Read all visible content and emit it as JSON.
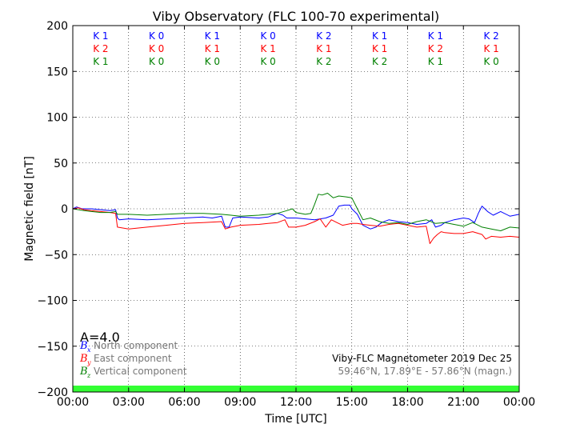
{
  "chart_data": {
    "type": "line",
    "title": "Viby Observatory (FLC 100-70 experimental)",
    "xlabel": "Time [UTC]",
    "ylabel": "Magnetic field [nT]",
    "xlim": [
      0,
      24
    ],
    "ylim": [
      -200,
      200
    ],
    "x_ticks": [
      0,
      3,
      6,
      9,
      12,
      15,
      18,
      21,
      24
    ],
    "x_tick_labels": [
      "00:00",
      "03:00",
      "06:00",
      "09:00",
      "12:00",
      "15:00",
      "18:00",
      "21:00",
      "00:00"
    ],
    "y_ticks": [
      -200,
      -150,
      -100,
      -50,
      0,
      50,
      100,
      150,
      200
    ],
    "y_tick_labels": [
      "−200",
      "−150",
      "−100",
      "−50",
      "0",
      "50",
      "100",
      "150",
      "200"
    ],
    "grid": true,
    "colors": {
      "north": "#0000ff",
      "east": "#ff0000",
      "vertical": "#008000",
      "band": "#33ff33"
    },
    "k_index": {
      "north": [
        "K 1",
        "K 0",
        "K 1",
        "K 0",
        "K 2",
        "K 1",
        "K 1",
        "K 2"
      ],
      "east": [
        "K 2",
        "K 0",
        "K 1",
        "K 1",
        "K 1",
        "K 1",
        "K 2",
        "K 1"
      ],
      "vertical": [
        "K 1",
        "K 0",
        "K 0",
        "K 0",
        "K 2",
        "K 2",
        "K 1",
        "K 0"
      ]
    },
    "a_index": "A=4.0",
    "legend": [
      {
        "symbol": "B",
        "sub": "x",
        "label": "North component",
        "color": "#0000ff"
      },
      {
        "symbol": "B",
        "sub": "y",
        "label": "East component",
        "color": "#ff0000"
      },
      {
        "symbol": "B",
        "sub": "z",
        "label": "Vertical component",
        "color": "#008000"
      }
    ],
    "info_line1": "Viby-FLC Magnetometer 2019 Dec 25",
    "info_line2": "59.46°N, 17.89°E - 57.86°N (magn.)",
    "series": [
      {
        "key": "north",
        "color": "#0000ff",
        "x": [
          0,
          0.2,
          0.5,
          1,
          1.5,
          2,
          2.3,
          2.4,
          2.5,
          3,
          4,
          5,
          6,
          7,
          7.5,
          8,
          8.2,
          8.4,
          8.6,
          9,
          10,
          10.5,
          11,
          11.3,
          11.5,
          12,
          12.5,
          13,
          13.3,
          13.6,
          14,
          14.3,
          14.6,
          14.9,
          15,
          15.3,
          15.6,
          16,
          16.3,
          16.6,
          17,
          17.5,
          18,
          18.5,
          19,
          19.3,
          19.5,
          19.8,
          20,
          20.5,
          21,
          21.3,
          21.6,
          21.8,
          22,
          22.3,
          22.6,
          23,
          23.5,
          24
        ],
        "y": [
          0,
          2,
          0,
          0,
          -1,
          -2,
          -1,
          -10,
          -12,
          -11,
          -12,
          -11,
          -10,
          -9,
          -10,
          -8,
          -20,
          -20,
          -10,
          -9,
          -10,
          -9,
          -5,
          -7,
          -10,
          -10,
          -11,
          -12,
          -11,
          -10,
          -7,
          3,
          4,
          4,
          0,
          -6,
          -18,
          -22,
          -20,
          -15,
          -12,
          -14,
          -15,
          -17,
          -16,
          -12,
          -20,
          -18,
          -15,
          -12,
          -10,
          -11,
          -15,
          -5,
          3,
          -3,
          -7,
          -3,
          -8,
          -6
        ]
      },
      {
        "key": "east",
        "color": "#ff0000",
        "x": [
          0,
          0.3,
          0.6,
          1,
          1.5,
          2,
          2.3,
          2.4,
          3,
          4,
          5,
          6,
          7,
          8,
          8.2,
          8.5,
          9,
          10,
          10.5,
          11,
          11.4,
          11.6,
          12,
          12.5,
          13,
          13.3,
          13.6,
          13.9,
          14.2,
          14.5,
          15,
          15.3,
          15.6,
          16,
          16.5,
          17,
          17.5,
          18,
          18.5,
          19,
          19.2,
          19.4,
          19.6,
          19.8,
          20,
          20.5,
          21,
          21.5,
          22,
          22.2,
          22.5,
          23,
          23.5,
          24
        ],
        "y": [
          0,
          1,
          -1,
          -2,
          -3,
          -4,
          -5,
          -20,
          -22,
          -20,
          -18,
          -16,
          -15,
          -14,
          -22,
          -20,
          -18,
          -17,
          -16,
          -15,
          -12,
          -20,
          -20,
          -18,
          -14,
          -11,
          -20,
          -12,
          -15,
          -18,
          -16,
          -16,
          -17,
          -18,
          -19,
          -17,
          -16,
          -18,
          -20,
          -19,
          -38,
          -32,
          -28,
          -25,
          -26,
          -27,
          -27,
          -25,
          -28,
          -33,
          -30,
          -31,
          -30,
          -31
        ]
      },
      {
        "key": "vertical",
        "color": "#008000",
        "x": [
          0,
          0.3,
          0.6,
          1,
          1.5,
          2,
          2.3,
          2.4,
          3,
          4,
          5,
          6,
          7,
          8,
          8.5,
          9,
          10,
          10.5,
          11,
          11.5,
          11.8,
          12,
          12.5,
          12.8,
          13,
          13.2,
          13.4,
          13.7,
          14,
          14.3,
          14.7,
          15,
          15.3,
          15.6,
          16,
          16.5,
          17,
          17.5,
          18,
          18.5,
          19,
          19.5,
          20,
          20.5,
          21,
          21.5,
          22,
          22.5,
          23,
          23.5,
          24
        ],
        "y": [
          0,
          -1,
          -2,
          -3,
          -4,
          -4,
          -3,
          -6,
          -6,
          -7,
          -6,
          -5,
          -5,
          -6,
          -7,
          -8,
          -7,
          -6,
          -5,
          -2,
          0,
          -4,
          -6,
          -5,
          5,
          16,
          15,
          17,
          12,
          14,
          13,
          12,
          0,
          -12,
          -10,
          -14,
          -16,
          -15,
          -17,
          -14,
          -12,
          -16,
          -15,
          -17,
          -19,
          -15,
          -20,
          -22,
          -24,
          -20,
          -21
        ]
      }
    ]
  }
}
